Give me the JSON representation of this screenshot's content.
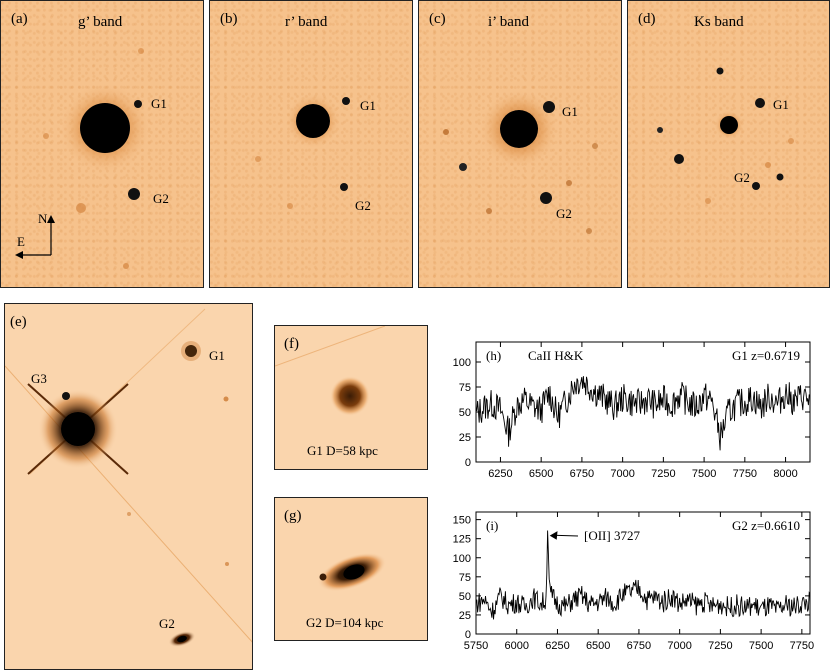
{
  "panels": {
    "a": {
      "label": "(a)",
      "title": "g’ band",
      "g1": "G1",
      "g2": "G2",
      "north": "N",
      "east": "E"
    },
    "b": {
      "label": "(b)",
      "title": "r’ band",
      "g1": "G1",
      "g2": "G2"
    },
    "c": {
      "label": "(c)",
      "title": "i’ band",
      "g1": "G1",
      "g2": "G2"
    },
    "d": {
      "label": "(d)",
      "title": "Ks band",
      "g1": "G1",
      "g2": "G2"
    },
    "e": {
      "label": "(e)",
      "g1": "G1",
      "g2": "G2",
      "g3": "G3"
    },
    "f": {
      "label": "(f)",
      "caption": "G1 D=58 kpc"
    },
    "g": {
      "label": "(g)",
      "caption": "G2 D=104 kpc"
    }
  },
  "chart_data": [
    {
      "type": "line",
      "panel_label": "(h)",
      "annotation": "CaII H&K",
      "redshift_label": "G1 z=0.6719",
      "xlim": [
        6100,
        8150
      ],
      "ylim": [
        0,
        120
      ],
      "xticks": [
        6250,
        6500,
        6750,
        7000,
        7250,
        7500,
        7750,
        8000
      ],
      "yticks": [
        0,
        25,
        50,
        75,
        100
      ],
      "x": [
        6100,
        6150,
        6200,
        6250,
        6300,
        6350,
        6400,
        6450,
        6500,
        6550,
        6600,
        6650,
        6700,
        6750,
        6800,
        6850,
        6900,
        6950,
        7000,
        7050,
        7100,
        7150,
        7200,
        7250,
        7300,
        7350,
        7400,
        7450,
        7500,
        7550,
        7600,
        7650,
        7700,
        7750,
        7800,
        7850,
        7900,
        7950,
        8000,
        8050,
        8100,
        8150
      ],
      "y": [
        48,
        55,
        58,
        52,
        30,
        57,
        62,
        55,
        52,
        70,
        45,
        60,
        78,
        83,
        75,
        68,
        62,
        55,
        64,
        60,
        58,
        63,
        57,
        62,
        58,
        67,
        60,
        55,
        66,
        60,
        25,
        50,
        58,
        60,
        64,
        55,
        66,
        58,
        69,
        60,
        66,
        62
      ]
    },
    {
      "type": "line",
      "panel_label": "(i)",
      "annotation": "[OII] 3727",
      "redshift_label": "G2 z=0.6610",
      "xlim": [
        5750,
        7800
      ],
      "ylim": [
        0,
        160
      ],
      "xticks": [
        5750,
        6000,
        6250,
        6500,
        6750,
        7000,
        7250,
        7500,
        7750
      ],
      "yticks": [
        0,
        25,
        50,
        75,
        100,
        125,
        150
      ],
      "x": [
        5750,
        5800,
        5850,
        5900,
        5950,
        6000,
        6050,
        6100,
        6150,
        6180,
        6190,
        6200,
        6250,
        6300,
        6350,
        6400,
        6450,
        6500,
        6550,
        6600,
        6650,
        6700,
        6750,
        6800,
        6850,
        6900,
        6950,
        7000,
        7050,
        7100,
        7150,
        7200,
        7250,
        7300,
        7350,
        7400,
        7450,
        7500,
        7550,
        7600,
        7650,
        7700,
        7750,
        7800
      ],
      "y": [
        40,
        45,
        30,
        50,
        38,
        42,
        35,
        48,
        40,
        45,
        150,
        55,
        40,
        36,
        45,
        50,
        38,
        42,
        48,
        40,
        52,
        55,
        60,
        45,
        48,
        42,
        50,
        40,
        44,
        38,
        42,
        36,
        40,
        35,
        38,
        34,
        38,
        33,
        36,
        30,
        38,
        36,
        40,
        42
      ]
    }
  ]
}
